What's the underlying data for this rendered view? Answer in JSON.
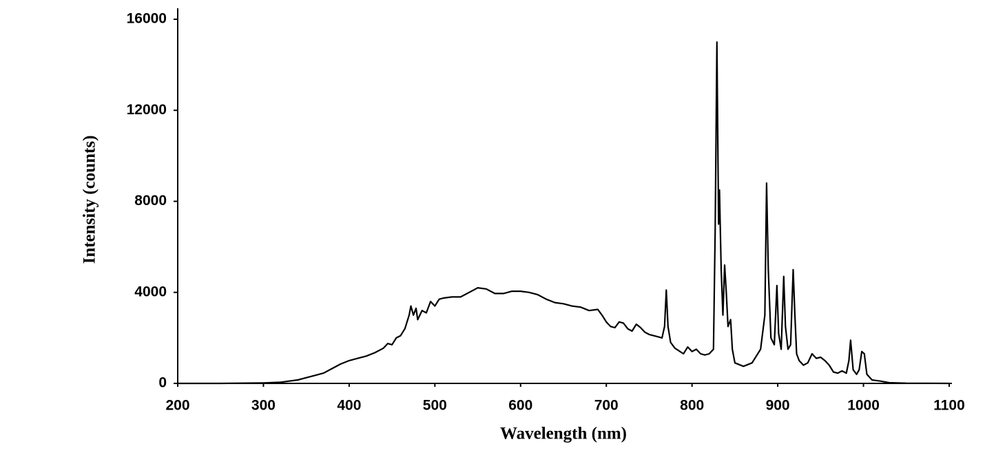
{
  "chart_data": {
    "type": "line",
    "x_label": "Wavelength (nm)",
    "y_label": "Intensity (counts)",
    "color": "#000000",
    "x": [
      200,
      250,
      300,
      320,
      340,
      350,
      360,
      370,
      380,
      390,
      400,
      410,
      420,
      430,
      440,
      445,
      450,
      455,
      460,
      465,
      470,
      472,
      475,
      478,
      480,
      485,
      490,
      495,
      500,
      505,
      510,
      520,
      530,
      540,
      550,
      560,
      570,
      580,
      590,
      600,
      610,
      620,
      630,
      640,
      650,
      660,
      670,
      680,
      690,
      695,
      700,
      705,
      710,
      715,
      720,
      725,
      730,
      735,
      740,
      745,
      750,
      755,
      760,
      765,
      768,
      770,
      772,
      775,
      780,
      790,
      795,
      800,
      805,
      810,
      815,
      820,
      825,
      827,
      829,
      831,
      832,
      834,
      836,
      838,
      840,
      842,
      845,
      847,
      850,
      860,
      870,
      880,
      885,
      887,
      889,
      892,
      896,
      899,
      901,
      904,
      907,
      909,
      912,
      915,
      918,
      920,
      922,
      925,
      930,
      935,
      940,
      945,
      950,
      955,
      960,
      965,
      970,
      975,
      980,
      983,
      985,
      988,
      992,
      995,
      998,
      1001,
      1004,
      1010,
      1020,
      1030,
      1050,
      1100
    ],
    "values": [
      0,
      0,
      20,
      50,
      150,
      250,
      350,
      450,
      650,
      850,
      1000,
      1100,
      1200,
      1350,
      1550,
      1750,
      1700,
      2000,
      2100,
      2400,
      3000,
      3400,
      3000,
      3300,
      2800,
      3200,
      3100,
      3600,
      3400,
      3700,
      3750,
      3800,
      3800,
      4000,
      4200,
      4150,
      3950,
      3950,
      4050,
      4050,
      4000,
      3900,
      3700,
      3550,
      3500,
      3400,
      3350,
      3200,
      3250,
      3000,
      2700,
      2500,
      2450,
      2700,
      2650,
      2400,
      2300,
      2600,
      2450,
      2250,
      2150,
      2100,
      2050,
      2000,
      2500,
      4100,
      2500,
      1800,
      1550,
      1300,
      1600,
      1400,
      1500,
      1300,
      1250,
      1300,
      1500,
      6800,
      15000,
      7000,
      8500,
      5000,
      3000,
      5200,
      4000,
      2500,
      2800,
      1500,
      900,
      750,
      900,
      1500,
      3000,
      8800,
      5000,
      2000,
      1700,
      4300,
      2200,
      1500,
      4700,
      2500,
      1500,
      1700,
      5000,
      3000,
      1300,
      1000,
      800,
      900,
      1300,
      1100,
      1150,
      1000,
      800,
      500,
      450,
      550,
      450,
      1000,
      1900,
      600,
      400,
      600,
      1400,
      1300,
      400,
      150,
      100,
      30,
      10,
      0
    ],
    "xlim": [
      200,
      1100
    ],
    "ylim": [
      0,
      16000
    ],
    "xticks": [
      200,
      300,
      400,
      500,
      600,
      700,
      800,
      900,
      1000,
      1100
    ],
    "yticks": [
      0,
      4000,
      8000,
      12000,
      16000
    ]
  }
}
